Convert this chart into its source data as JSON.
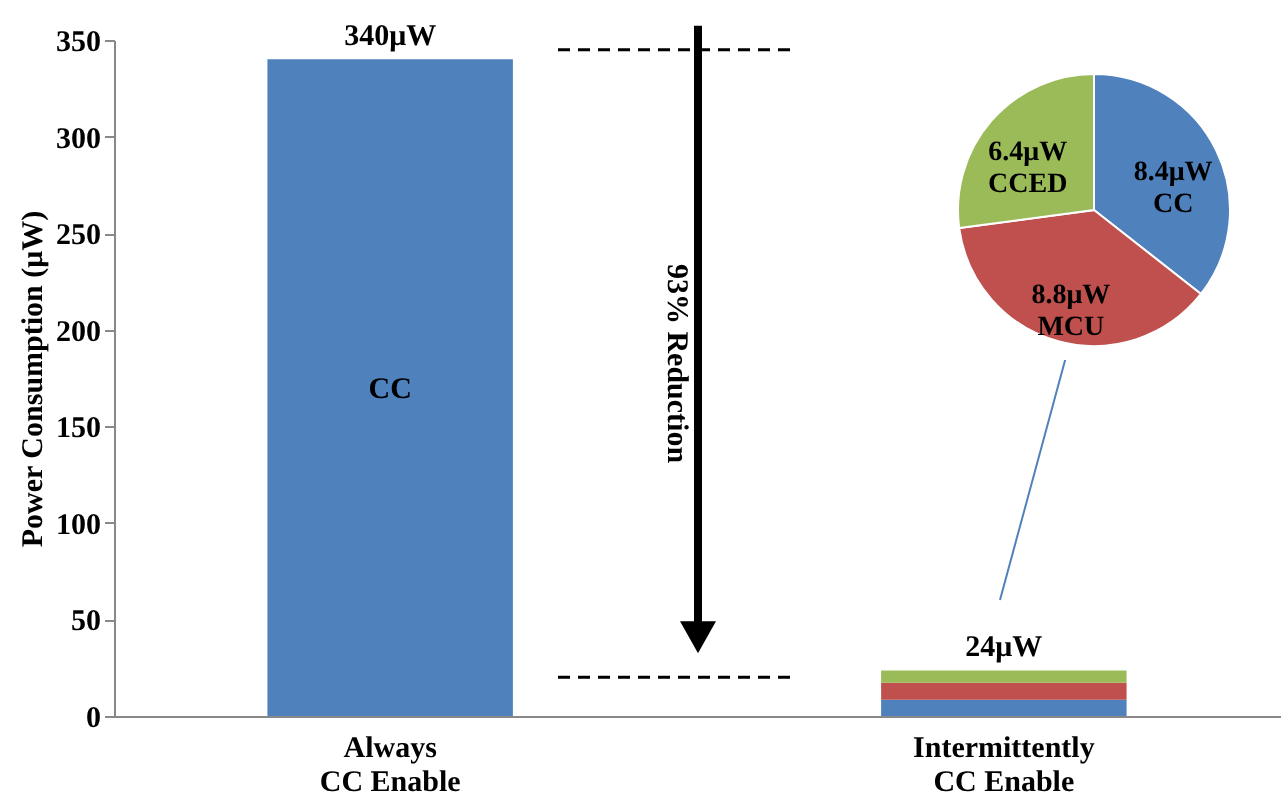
{
  "chart_data": [
    {
      "type": "bar",
      "stacked": true,
      "ylabel": "Power Consumption (μW)",
      "categories": [
        "Always\nCC Enable",
        "Intermittently\nCC Enable"
      ],
      "series": [
        {
          "name": "CC",
          "color": "#4f81bd",
          "values": [
            340,
            8.4
          ]
        },
        {
          "color": "#c0504d",
          "values": [
            0,
            8.8
          ]
        },
        {
          "color": "#9bbb59",
          "values": [
            0,
            6.4
          ]
        }
      ],
      "totals": [
        "340μW",
        "24μW"
      ],
      "ylim": [
        0,
        350
      ],
      "yticks": [
        0,
        50,
        100,
        150,
        200,
        250,
        300,
        350
      ],
      "grid": false,
      "ref_lines": [
        {
          "axis": "y",
          "value": 345,
          "label": null,
          "color": "#000000",
          "line_style": "dashed"
        },
        {
          "axis": "y",
          "value": 20,
          "label": null,
          "color": "#000000",
          "line_style": "dashed"
        }
      ],
      "annotations": [
        "93% Reduction"
      ]
    },
    {
      "type": "pie",
      "categories": [
        "CC",
        "MCU",
        "CCED"
      ],
      "values": [
        8.4,
        8.8,
        6.4
      ],
      "colors": [
        "#4f81bd",
        "#c0504d",
        "#9bbb59"
      ],
      "value_labels": [
        "8.4μW",
        "8.8μW",
        "6.4μW"
      ]
    }
  ]
}
